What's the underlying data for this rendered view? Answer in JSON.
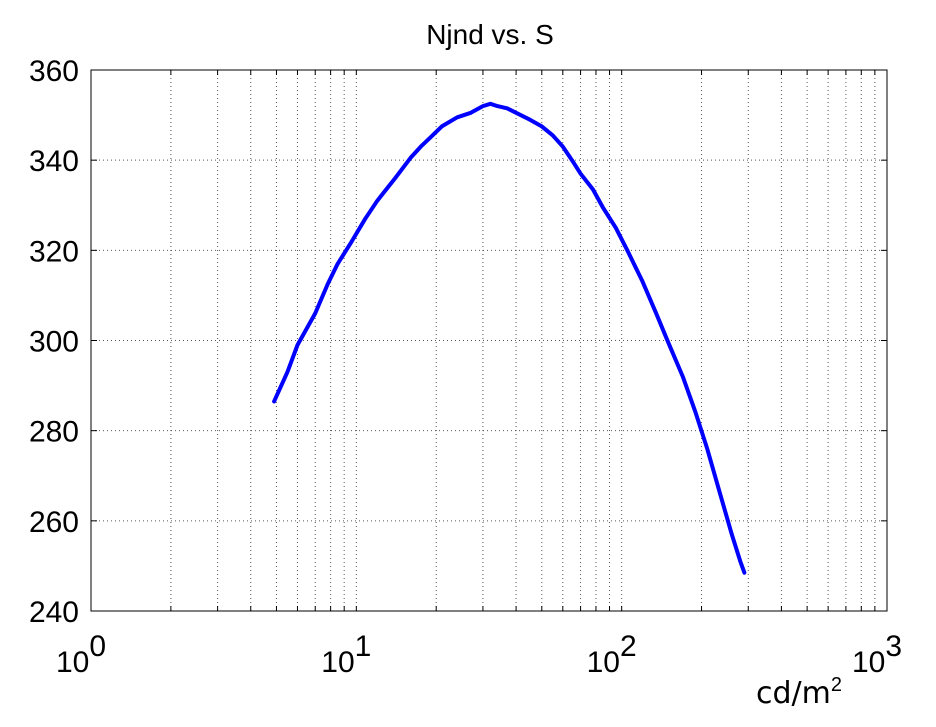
{
  "chart_data": {
    "type": "line",
    "title": "Njnd vs. S",
    "xlabel_base": "cd/m",
    "xlabel_sup": "2",
    "x_scale": "log",
    "xlim": [
      1,
      1000
    ],
    "ylim": [
      240,
      360
    ],
    "y_ticks": [
      "240",
      "260",
      "280",
      "300",
      "320",
      "340",
      "360"
    ],
    "x_ticks": [
      {
        "base": "10",
        "exp": "0"
      },
      {
        "base": "10",
        "exp": "1"
      },
      {
        "base": "10",
        "exp": "2"
      },
      {
        "base": "10",
        "exp": "3"
      }
    ],
    "grid": true,
    "line_color": "#0000ff",
    "x": [
      4.9,
      5.5,
      6,
      7,
      7.8,
      8.5,
      9.5,
      10.8,
      12,
      14,
      16,
      17.5,
      19,
      21,
      24,
      27,
      30,
      32,
      34,
      37,
      40,
      45,
      50,
      55,
      60,
      65,
      70,
      78,
      85,
      95,
      105,
      120,
      135,
      150,
      170,
      190,
      210,
      235,
      260,
      280,
      290
    ],
    "y": [
      286.5,
      293,
      299,
      306,
      312.5,
      317,
      321.5,
      327,
      331,
      336,
      340.5,
      343,
      345,
      347.5,
      349.5,
      350.5,
      352,
      352.5,
      352,
      351.5,
      350.5,
      349,
      347.5,
      345.5,
      343,
      340,
      337,
      333.5,
      329.5,
      325,
      320,
      313,
      306,
      299.5,
      292,
      284,
      276,
      266,
      257,
      251,
      248.5
    ]
  }
}
